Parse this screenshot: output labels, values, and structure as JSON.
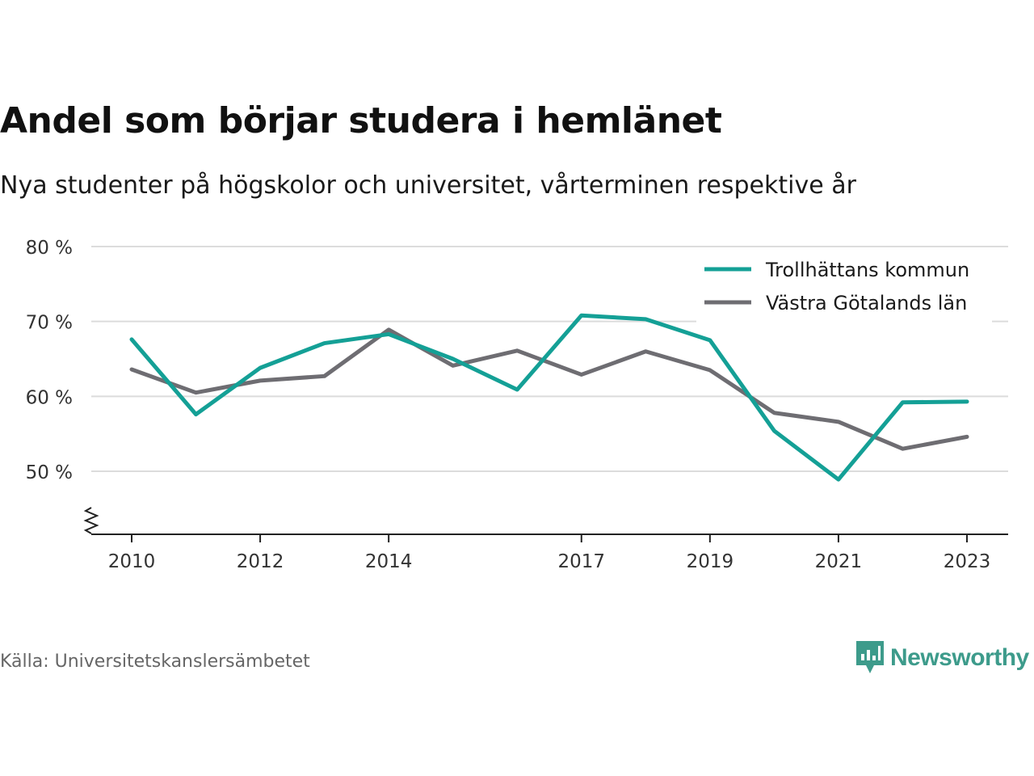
{
  "title": "Andel som börjar studera i hemlänet",
  "subtitle": "Nya studenter på högskolor och universitet, vårterminen respektive år",
  "source": "Källa: Universitetskanslersämbetet",
  "brand": {
    "name": "Newsworthy",
    "icon": "newsworthy-logo-icon",
    "color": "#3d9b8b"
  },
  "chart_data": {
    "type": "line",
    "title": "Andel som börjar studera i hemlänet",
    "subtitle": "Nya studenter på högskolor och universitet, vårterminen respektive år",
    "x": [
      2010,
      2011,
      2012,
      2013,
      2014,
      2015,
      2016,
      2017,
      2018,
      2019,
      2020,
      2021,
      2022,
      2023
    ],
    "x_ticks": [
      "2010",
      "2012",
      "2014",
      "2017",
      "2019",
      "2021",
      "2023"
    ],
    "y_ticks": [
      "50 %",
      "60 %",
      "70 %",
      "80 %"
    ],
    "y_tick_values": [
      50,
      60,
      70,
      80
    ],
    "ylim": [
      42,
      80
    ],
    "y_axis_break": true,
    "grid": true,
    "legend_position": "top-right",
    "series": [
      {
        "name": "Trollhättans kommun",
        "color": "#14a096",
        "values": [
          67.6,
          57.6,
          63.8,
          67.1,
          68.3,
          65.0,
          60.9,
          70.8,
          70.3,
          67.5,
          55.4,
          48.9,
          59.2,
          59.3
        ]
      },
      {
        "name": "Västra Götalands län",
        "color": "#6e6d72",
        "values": [
          63.6,
          60.5,
          62.1,
          62.7,
          68.9,
          64.1,
          66.1,
          62.9,
          66.0,
          63.5,
          57.8,
          56.6,
          53.0,
          54.6
        ]
      }
    ]
  }
}
